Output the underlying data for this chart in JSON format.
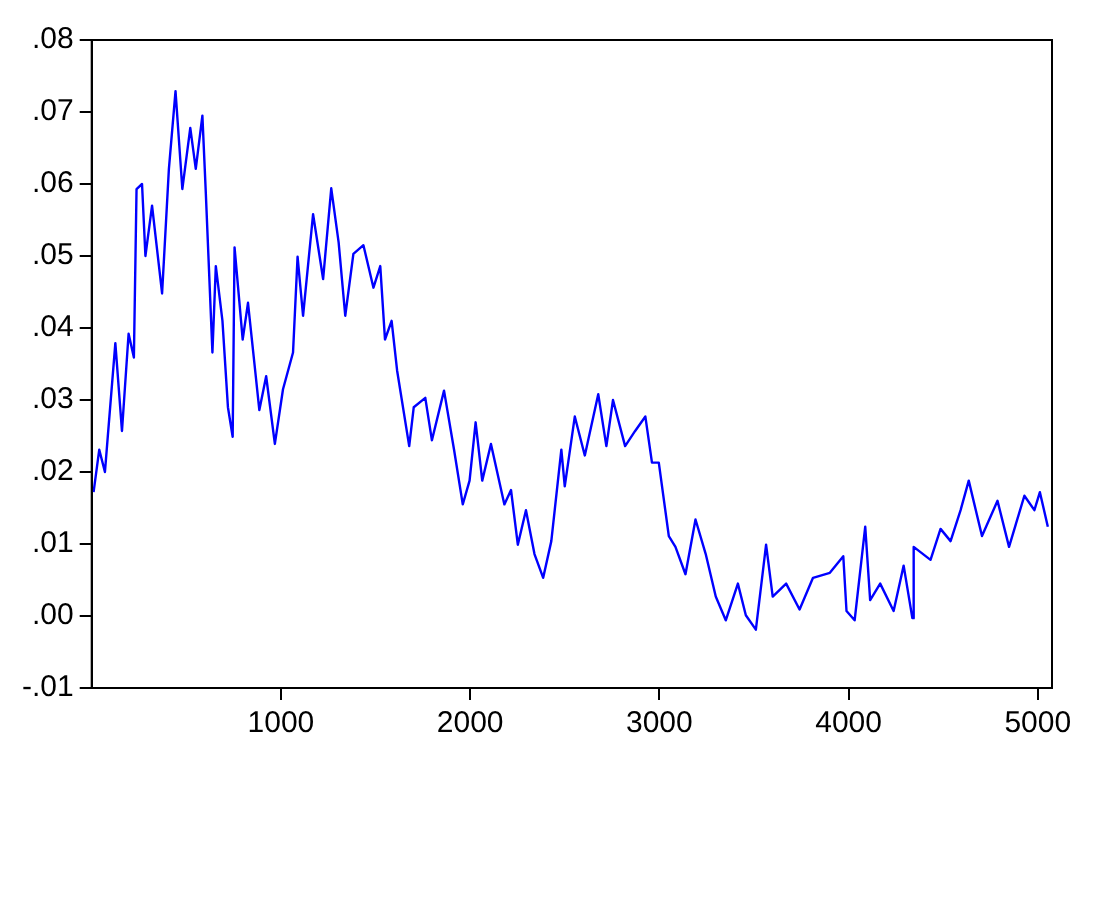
{
  "chart_data": {
    "type": "line",
    "xlim": [
      0,
      5075
    ],
    "xticks": [
      1000,
      2000,
      3000,
      4000,
      5000
    ],
    "ylim": [
      -0.01,
      0.08
    ],
    "yticks": [
      {
        "value": -0.01,
        "label": "-.01"
      },
      {
        "value": 0,
        "label": ".00"
      },
      {
        "value": 0.01,
        "label": ".01"
      },
      {
        "value": 0.02,
        "label": ".02"
      },
      {
        "value": 0.03,
        "label": ".03"
      },
      {
        "value": 0.04,
        "label": ".04"
      },
      {
        "value": 0.05,
        "label": ".05"
      },
      {
        "value": 0.06,
        "label": ".06"
      },
      {
        "value": 0.07,
        "label": ".07"
      },
      {
        "value": 0.08,
        "label": ".08"
      }
    ],
    "grid": false,
    "marker": "none",
    "line_style": "solid",
    "x": [
      10,
      40,
      70,
      85,
      125,
      160,
      195,
      223,
      237,
      266,
      284,
      319,
      372,
      408,
      443,
      479,
      521,
      550,
      585,
      603,
      638,
      656,
      691,
      720,
      745,
      755,
      798,
      826,
      886,
      922,
      968,
      1011,
      1064,
      1088,
      1117,
      1170,
      1223,
      1266,
      1305,
      1340,
      1383,
      1436,
      1489,
      1525,
      1550,
      1585,
      1614,
      1678,
      1702,
      1763,
      1798,
      1862,
      1915,
      1961,
      1997,
      2029,
      2064,
      2110,
      2181,
      2216,
      2252,
      2295,
      2340,
      2386,
      2429,
      2482,
      2500,
      2553,
      2606,
      2677,
      2720,
      2755,
      2819,
      2872,
      2926,
      2961,
      2997,
      3050,
      3085,
      3138,
      3191,
      3245,
      3298,
      3351,
      3415,
      3457,
      3510,
      3564,
      3599,
      3670,
      3741,
      3812,
      3901,
      3972,
      3989,
      4032,
      4088,
      4114,
      4167,
      4238,
      4291,
      4337,
      4344,
      4433,
      4486,
      4539,
      4592,
      4635,
      4705,
      4787,
      4848,
      4929,
      4982,
      5011,
      5053
    ],
    "series": [
      {
        "color": "#0000ff",
        "values": [
          0.0172,
          0.0231,
          0.02,
          0.0249,
          0.0379,
          0.0257,
          0.0392,
          0.0359,
          0.0593,
          0.06,
          0.05,
          0.057,
          0.0448,
          0.0621,
          0.0729,
          0.0593,
          0.0678,
          0.0621,
          0.0695,
          0.0588,
          0.0366,
          0.0486,
          0.041,
          0.029,
          0.0249,
          0.0512,
          0.0384,
          0.0435,
          0.0286,
          0.0333,
          0.0239,
          0.0315,
          0.0366,
          0.0499,
          0.0417,
          0.0558,
          0.0468,
          0.0594,
          0.0519,
          0.0417,
          0.0503,
          0.0515,
          0.0456,
          0.0486,
          0.0384,
          0.041,
          0.0341,
          0.0236,
          0.029,
          0.0303,
          0.0244,
          0.0313,
          0.0231,
          0.0155,
          0.0188,
          0.0269,
          0.0188,
          0.0239,
          0.0155,
          0.0175,
          0.0099,
          0.0147,
          0.0086,
          0.0053,
          0.0104,
          0.0231,
          0.018,
          0.0277,
          0.0223,
          0.0308,
          0.0236,
          0.03,
          0.0236,
          0.0257,
          0.0277,
          0.0213,
          0.0213,
          0.0111,
          0.0096,
          0.0058,
          0.0134,
          0.0086,
          0.0027,
          -0.0006,
          0.0045,
          0.0001,
          -0.0019,
          0.0099,
          0.0027,
          0.0045,
          0.0009,
          0.0053,
          0.006,
          0.0083,
          0.0007,
          -0.0006,
          0.0124,
          0.0022,
          0.0045,
          0.0007,
          0.007,
          -0.0003,
          0.0096,
          0.0078,
          0.0121,
          0.0104,
          0.0147,
          0.0188,
          0.0111,
          0.016,
          0.0096,
          0.0167,
          0.0147,
          0.0172,
          0.0124
        ]
      }
    ]
  }
}
